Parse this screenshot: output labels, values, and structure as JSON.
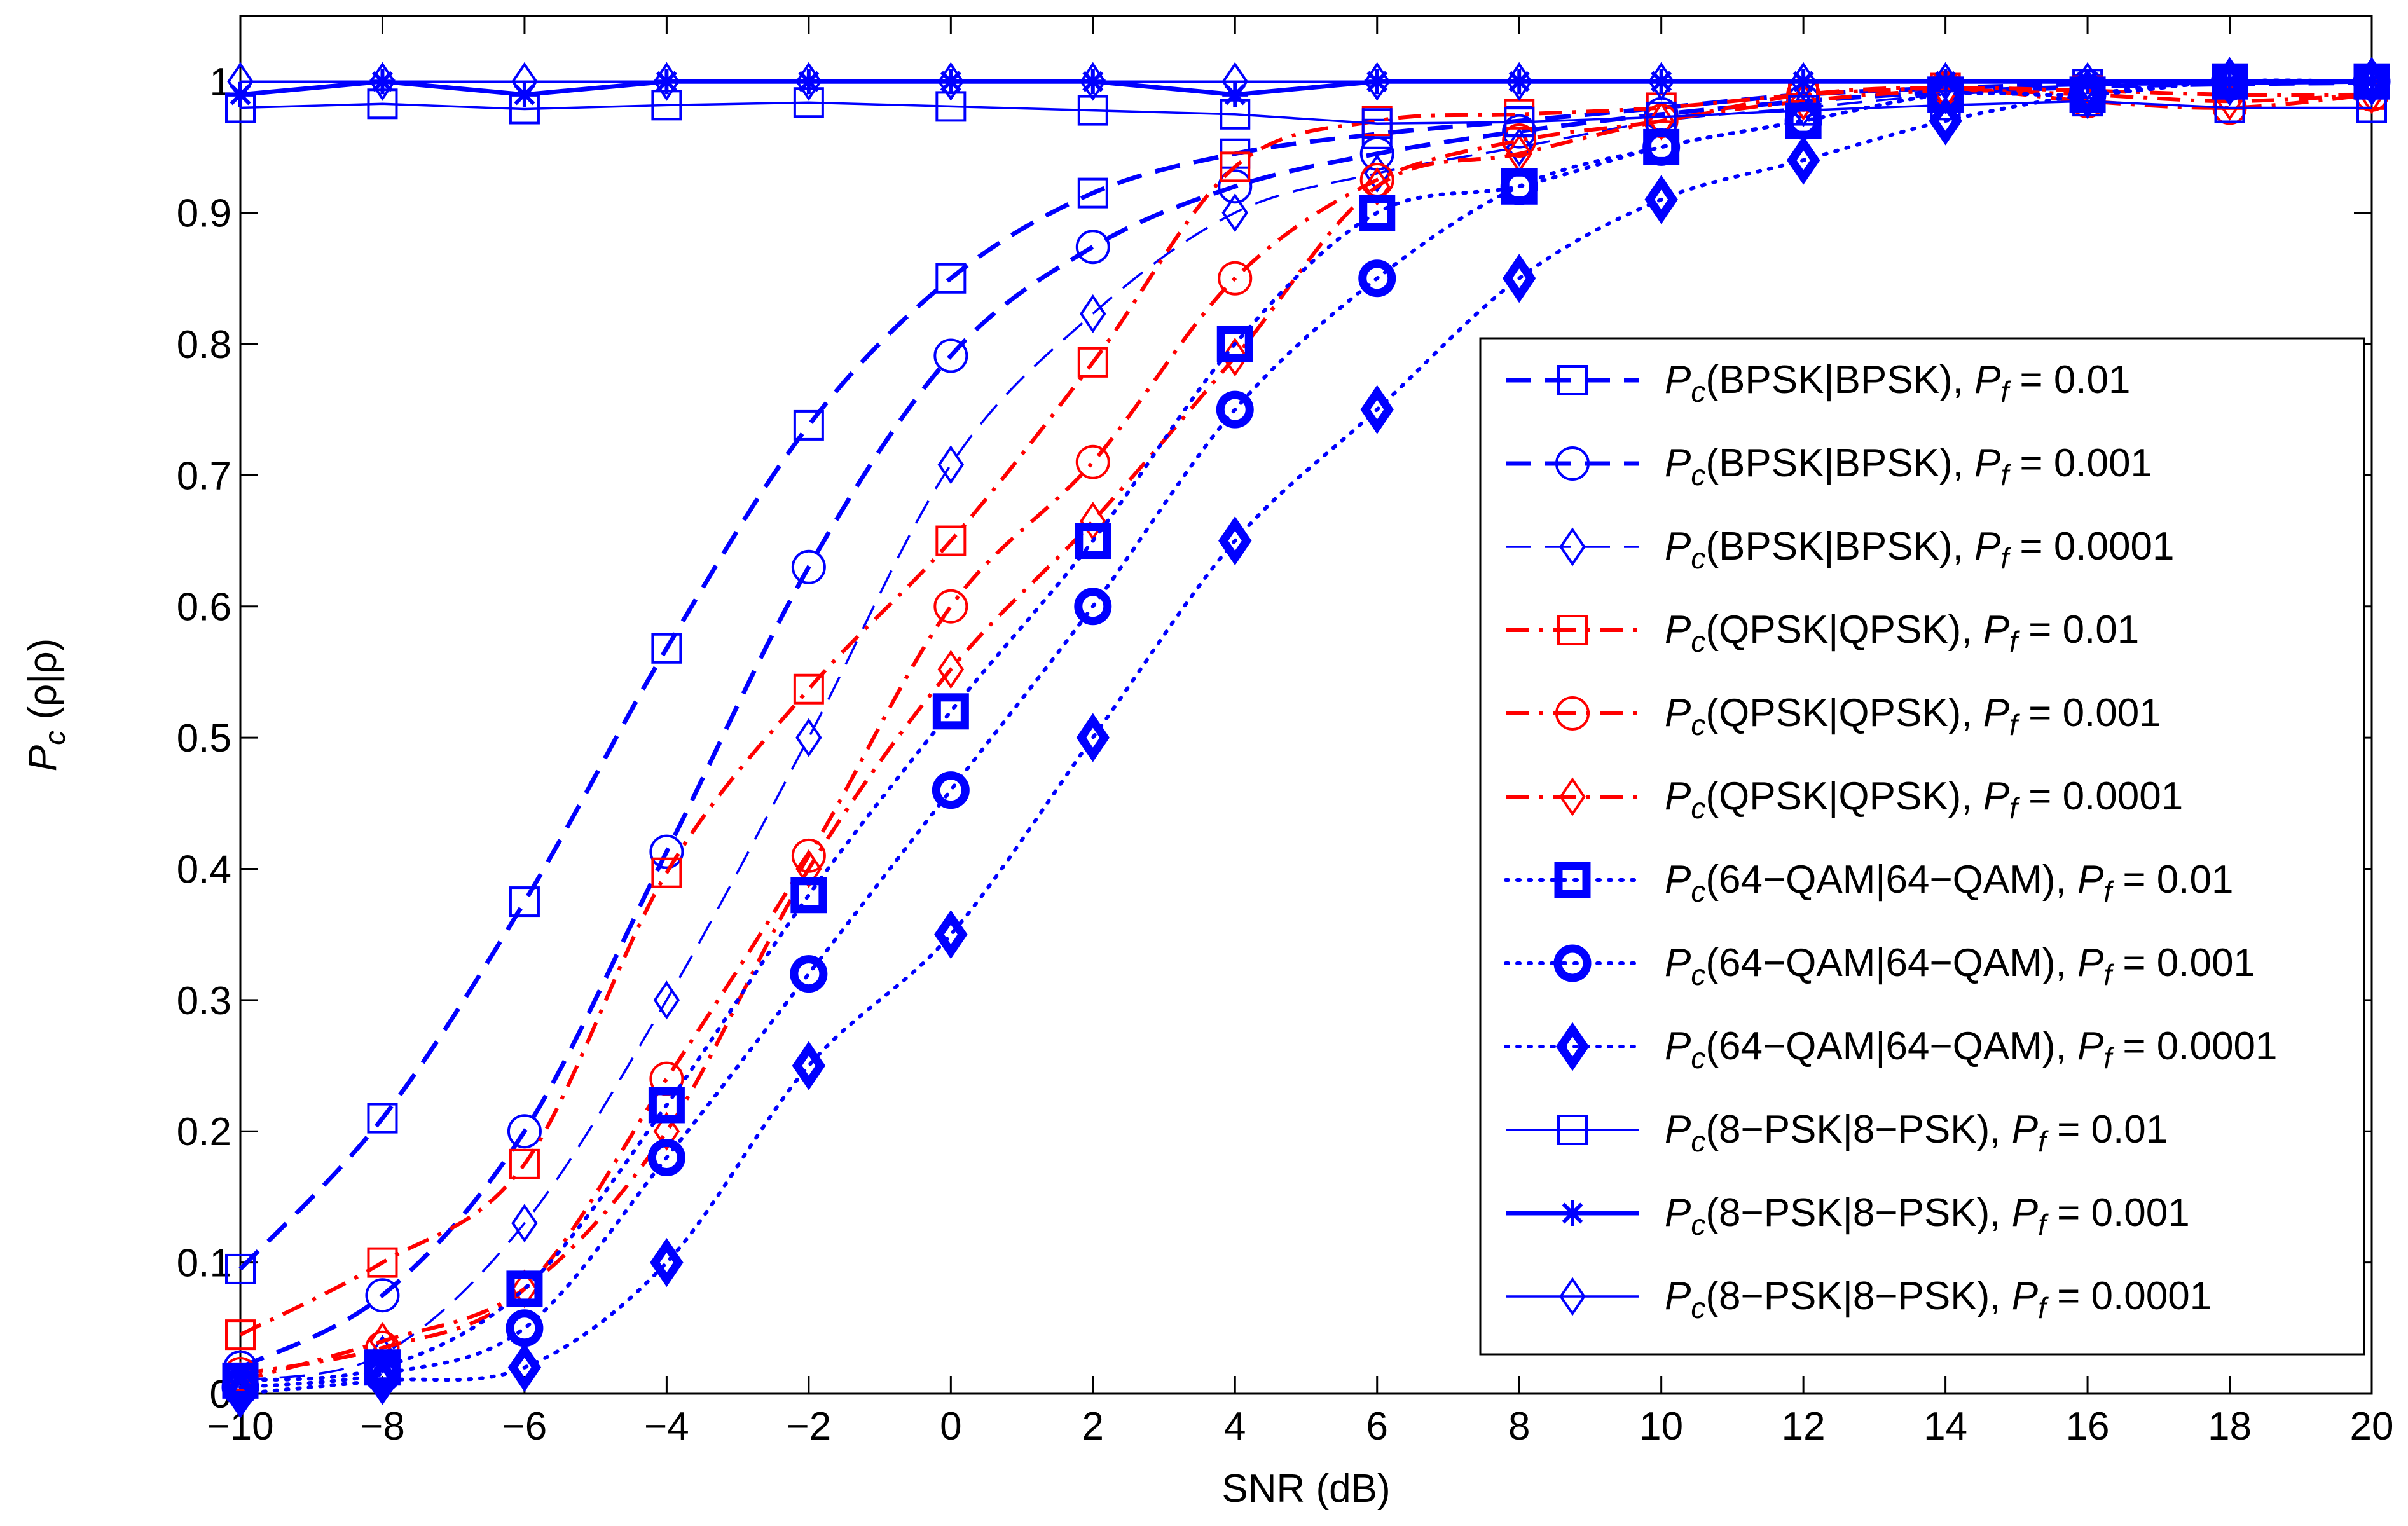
{
  "chart_data": {
    "type": "line",
    "title": "",
    "xlabel": "SNR (dB)",
    "ylabel": {
      "main": "P",
      "sub": "c",
      "rest": " (ρ|ρ)"
    },
    "xlim": [
      -10,
      20
    ],
    "ylim": [
      0,
      1.05
    ],
    "xticks": [
      -10,
      -8,
      -6,
      -4,
      -2,
      0,
      2,
      4,
      6,
      8,
      10,
      12,
      14,
      16,
      18,
      20
    ],
    "xtick_labels": [
      "−10",
      "−8",
      "−6",
      "−4",
      "−2",
      "0",
      "2",
      "4",
      "6",
      "8",
      "10",
      "12",
      "14",
      "16",
      "18",
      "20"
    ],
    "yticks": [
      0,
      0.1,
      0.2,
      0.3,
      0.4,
      0.5,
      0.6,
      0.7,
      0.8,
      0.9,
      1
    ],
    "ytick_labels": [
      "0",
      "0.1",
      "0.2",
      "0.3",
      "0.4",
      "0.5",
      "0.6",
      "0.7",
      "0.8",
      "0.9",
      "1"
    ],
    "legend_position": "right",
    "x": [
      -10,
      -8,
      -6,
      -4,
      -2,
      0,
      2,
      4,
      6,
      8,
      10,
      12,
      14,
      16,
      18,
      20
    ],
    "series": [
      {
        "name": "P_c(BPSK|BPSK), P_f = 0.01",
        "legend": {
          "pre": "(BPSK|BPSK), ",
          "val": " = 0.01"
        },
        "color": "#0000ff",
        "style": "dashed-thick",
        "marker": "square",
        "values": [
          0.095,
          0.21,
          0.375,
          0.568,
          0.738,
          0.85,
          0.915,
          0.945,
          0.96,
          0.97,
          0.98,
          0.99,
          0.995,
          0.998,
          0.999,
          1.0
        ]
      },
      {
        "name": "P_c(BPSK|BPSK), P_f = 0.001",
        "legend": {
          "pre": "(BPSK|BPSK), ",
          "val": " = 0.001"
        },
        "color": "#0000ff",
        "style": "dashed-thick",
        "marker": "circle",
        "values": [
          0.02,
          0.075,
          0.2,
          0.413,
          0.63,
          0.791,
          0.874,
          0.92,
          0.945,
          0.962,
          0.975,
          0.985,
          0.992,
          0.996,
          0.998,
          0.999
        ]
      },
      {
        "name": "P_c(BPSK|BPSK), P_f = 0.0001",
        "legend": {
          "pre": "(BPSK|BPSK), ",
          "val": " = 0.0001"
        },
        "color": "#0000ff",
        "style": "dashed-thin",
        "marker": "diamond",
        "values": [
          0.01,
          0.03,
          0.13,
          0.3,
          0.5,
          0.708,
          0.823,
          0.9,
          0.93,
          0.95,
          0.97,
          0.98,
          0.99,
          0.995,
          0.998,
          0.999
        ]
      },
      {
        "name": "P_c(QPSK|QPSK), P_f = 0.01",
        "legend": {
          "pre": "(QPSK|QPSK), ",
          "val": " = 0.01"
        },
        "color": "#ff0000",
        "style": "dashdot",
        "marker": "square",
        "values": [
          0.045,
          0.1,
          0.175,
          0.397,
          0.537,
          0.65,
          0.786,
          0.935,
          0.97,
          0.975,
          0.98,
          0.99,
          0.995,
          0.993,
          0.99,
          0.99
        ]
      },
      {
        "name": "P_c(QPSK|QPSK), P_f = 0.001",
        "legend": {
          "pre": "(QPSK|QPSK), ",
          "val": " = 0.001"
        },
        "color": "#ff0000",
        "style": "dashdot",
        "marker": "circle",
        "values": [
          0.015,
          0.035,
          0.08,
          0.24,
          0.41,
          0.6,
          0.71,
          0.85,
          0.925,
          0.955,
          0.97,
          0.99,
          0.995,
          0.985,
          0.98,
          0.99
        ]
      },
      {
        "name": "P_c(QPSK|QPSK), P_f = 0.0001",
        "legend": {
          "pre": "(QPSK|QPSK), ",
          "val": " = 0.0001"
        },
        "color": "#ff0000",
        "style": "dashdot",
        "marker": "diamond",
        "values": [
          0.01,
          0.04,
          0.08,
          0.2,
          0.4,
          0.552,
          0.665,
          0.79,
          0.92,
          0.945,
          0.97,
          0.985,
          0.993,
          0.99,
          0.985,
          0.99
        ]
      },
      {
        "name": "P_c(64-QAM|64-QAM), P_f = 0.01",
        "legend": {
          "pre": "(64−QAM|64−QAM), ",
          "val": " = 0.01"
        },
        "color": "#0000ff",
        "style": "dotted",
        "marker": "square-bold",
        "values": [
          0.01,
          0.02,
          0.08,
          0.22,
          0.38,
          0.52,
          0.65,
          0.8,
          0.9,
          0.92,
          0.95,
          0.97,
          0.99,
          0.99,
          1.0,
          1.0
        ]
      },
      {
        "name": "P_c(64-QAM|64-QAM), P_f = 0.001",
        "legend": {
          "pre": "(64−QAM|64−QAM), ",
          "val": " = 0.001"
        },
        "color": "#0000ff",
        "style": "dotted",
        "marker": "circle-bold",
        "values": [
          0.005,
          0.015,
          0.05,
          0.18,
          0.32,
          0.46,
          0.6,
          0.75,
          0.85,
          0.92,
          0.95,
          0.97,
          0.99,
          0.99,
          1.0,
          1.0
        ]
      },
      {
        "name": "P_c(64-QAM|64-QAM), P_f = 0.0001",
        "legend": {
          "pre": "(64−QAM|64−QAM), ",
          "val": " = 0.0001"
        },
        "color": "#0000ff",
        "style": "dotted",
        "marker": "diamond-bold",
        "values": [
          0.0,
          0.01,
          0.02,
          0.1,
          0.25,
          0.35,
          0.5,
          0.65,
          0.75,
          0.85,
          0.91,
          0.94,
          0.97,
          0.99,
          1.0,
          1.0
        ]
      },
      {
        "name": "P_c(8-PSK|8-PSK), P_f = 0.01",
        "legend": {
          "pre": "(8−PSK|8−PSK), ",
          "val": " = 0.01"
        },
        "color": "#0000ff",
        "style": "solid-thin",
        "marker": "square",
        "values": [
          0.98,
          0.983,
          0.979,
          0.982,
          0.984,
          0.981,
          0.978,
          0.975,
          0.968,
          0.969,
          0.973,
          0.978,
          0.982,
          0.985,
          0.98,
          0.98
        ]
      },
      {
        "name": "P_c(8-PSK|8-PSK), P_f = 0.001",
        "legend": {
          "pre": "(8−PSK|8−PSK), ",
          "val": " = 0.001"
        },
        "color": "#0000ff",
        "style": "solid-thick",
        "marker": "star",
        "values": [
          0.99,
          1.0,
          0.99,
          1.0,
          1.0,
          1.0,
          1.0,
          0.99,
          1.0,
          1.0,
          1.0,
          1.0,
          1.0,
          1.0,
          1.0,
          1.0
        ]
      },
      {
        "name": "P_c(8-PSK|8-PSK), P_f = 0.0001",
        "legend": {
          "pre": "(8−PSK|8−PSK), ",
          "val": " = 0.0001"
        },
        "color": "#0000ff",
        "style": "solid-thin",
        "marker": "diamond",
        "values": [
          1.0,
          1.0,
          1.0,
          1.0,
          1.0,
          1.0,
          1.0,
          1.0,
          1.0,
          1.0,
          1.0,
          1.0,
          1.0,
          1.0,
          1.0,
          1.0
        ]
      }
    ]
  }
}
